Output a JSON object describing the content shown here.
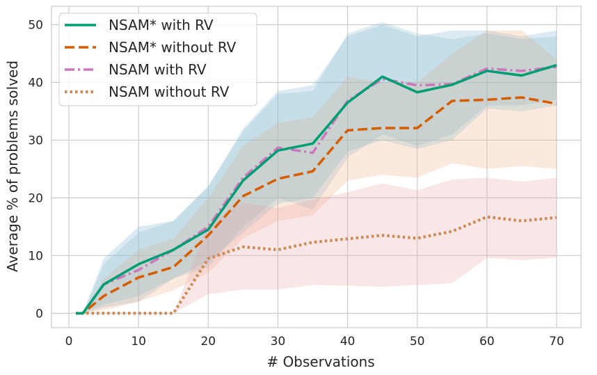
{
  "chart_data": {
    "type": "line",
    "xlabel": "# Observations",
    "ylabel": "Average % of problems solved",
    "xlim": [
      -2.5,
      73.5
    ],
    "ylim": [
      -2.5,
      53.2
    ],
    "xticks": [
      0,
      10,
      20,
      30,
      40,
      50,
      60,
      70
    ],
    "yticks": [
      0,
      10,
      20,
      30,
      40,
      50
    ],
    "grid": true,
    "legend_position": "top-left",
    "x": [
      1,
      2,
      5,
      10,
      15,
      20,
      25,
      30,
      35,
      40,
      45,
      50,
      55,
      60,
      65,
      70
    ],
    "series": [
      {
        "name": "NSAM* with RV",
        "color": "#029e73",
        "style": "solid",
        "values": [
          0,
          0,
          5,
          8.5,
          11,
          14.5,
          23,
          28.2,
          29.4,
          36.5,
          41,
          38.3,
          39.6,
          42,
          41.2,
          43
        ],
        "band_color": "#7fb3d5",
        "band_low": [
          0,
          0,
          1,
          2,
          6,
          8,
          15,
          20,
          18,
          27,
          31,
          29,
          31,
          36,
          36,
          37
        ],
        "band_high": [
          0,
          0,
          9.5,
          15,
          16,
          22,
          32,
          38.5,
          39.5,
          48,
          50,
          48,
          49,
          49,
          48,
          49
        ]
      },
      {
        "name": "NSAM* without RV",
        "color": "#d55e00",
        "style": "dashed",
        "values": [
          0,
          0,
          3,
          6.2,
          8,
          13.5,
          20.3,
          23.3,
          24.6,
          31.7,
          32.1,
          32.1,
          36.8,
          37,
          37.4,
          36.3
        ],
        "band_color": "#f0b088",
        "band_low": [
          0,
          0,
          0.5,
          2,
          4,
          7,
          13,
          16,
          17,
          23,
          24,
          23.5,
          26,
          25,
          25.5,
          25
        ],
        "band_high": [
          0,
          0,
          6,
          11,
          13,
          20,
          29,
          33,
          34,
          41,
          40,
          40,
          45,
          49,
          49,
          44
        ]
      },
      {
        "name": "NSAM with RV",
        "color": "#cc78bc",
        "style": "dashdot",
        "values": [
          0,
          0,
          5,
          7.5,
          11,
          15,
          23.5,
          28.7,
          27.8,
          36.8,
          40.6,
          39.5,
          39.7,
          42.4,
          42,
          42.7
        ],
        "band_color": "#8fbfc9",
        "band_low": [
          0,
          0,
          1.5,
          3,
          6,
          9,
          14,
          19,
          20,
          28,
          30,
          28.5,
          30,
          35.5,
          35,
          36
        ],
        "band_high": [
          0,
          0,
          8.5,
          14,
          16,
          22,
          31.5,
          38,
          38.5,
          48.5,
          50.5,
          48.5,
          47.5,
          48.5,
          47.5,
          48
        ]
      },
      {
        "name": "NSAM without RV",
        "color": "#cc8a55",
        "style": "dotted",
        "values": [
          0,
          0,
          0,
          0,
          0,
          9.5,
          11.5,
          11,
          12.3,
          12.9,
          13.5,
          13,
          14.2,
          16.7,
          16,
          16.6
        ],
        "band_color": "#e8a4a4",
        "band_low": [
          0,
          0,
          0,
          0,
          0,
          3.3,
          4.1,
          4.1,
          4.9,
          4.8,
          4.6,
          4.9,
          5.2,
          9.6,
          9.2,
          9.6
        ],
        "band_high": [
          0,
          0,
          0,
          0,
          0,
          15.5,
          19.2,
          18.2,
          19.7,
          21,
          22.5,
          21.3,
          23.2,
          23.5,
          22.8,
          23.5
        ]
      }
    ]
  }
}
